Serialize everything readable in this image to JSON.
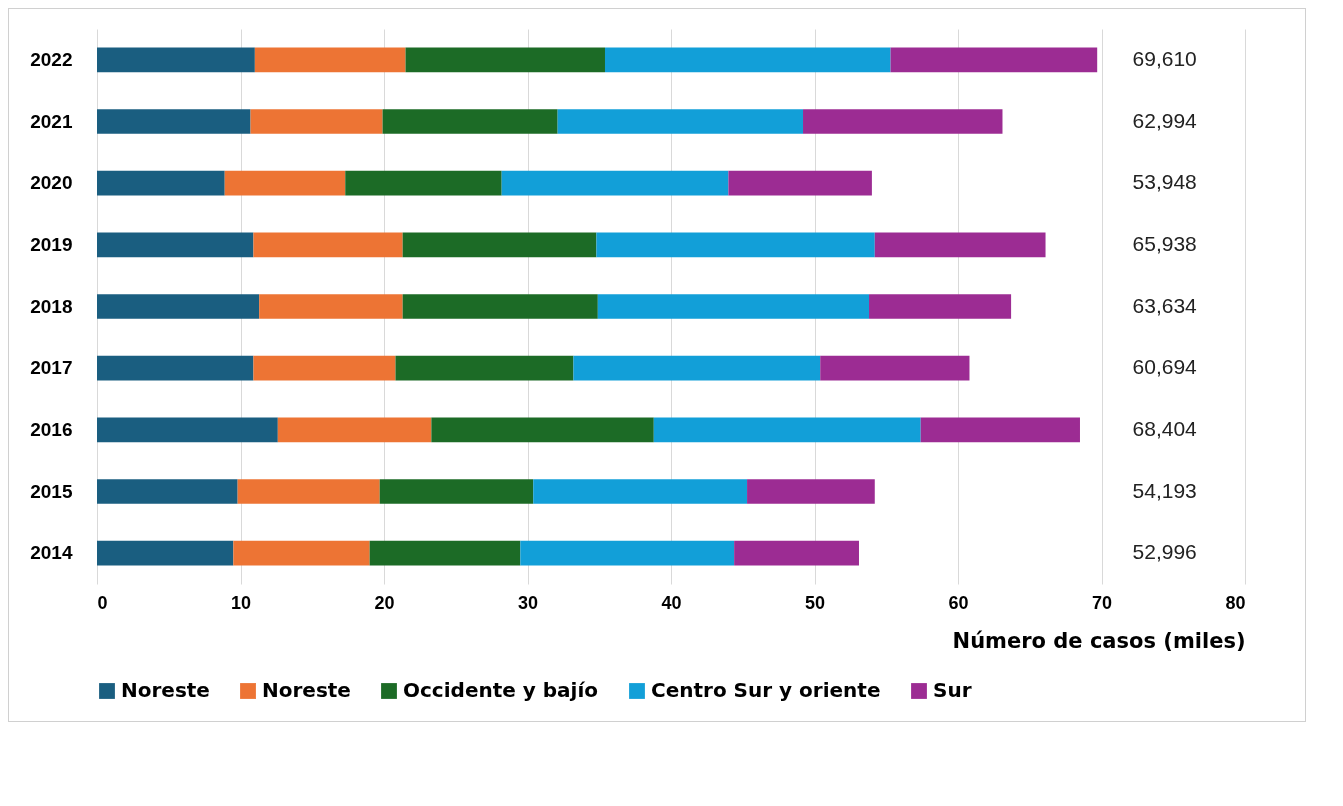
{
  "chart_data": {
    "type": "bar",
    "orientation": "horizontal",
    "stacked": true,
    "xlabel": "Número de casos (miles)",
    "categories": [
      "2022",
      "2021",
      "2020",
      "2019",
      "2018",
      "2017",
      "2016",
      "2015",
      "2014"
    ],
    "series": [
      {
        "name": "Noreste",
        "color": "#1a5e80",
        "values": [
          11.0,
          10.7,
          8.9,
          10.9,
          11.3,
          10.9,
          12.6,
          9.8,
          9.5
        ]
      },
      {
        "name": "Noreste",
        "color": "#ed7434",
        "values": [
          10.5,
          9.2,
          8.4,
          10.4,
          10.0,
          9.9,
          10.7,
          9.9,
          9.5
        ]
      },
      {
        "name": "Occidente y bajío",
        "color": "#1c6b26",
        "values": [
          13.9,
          12.2,
          10.9,
          13.5,
          13.6,
          12.4,
          15.5,
          10.7,
          10.5
        ]
      },
      {
        "name": "Centro Sur y oriente",
        "color": "#129fd8",
        "values": [
          19.9,
          17.1,
          15.8,
          19.4,
          18.9,
          17.2,
          18.6,
          14.9,
          14.9
        ]
      },
      {
        "name": "Sur",
        "color": "#9c2c93",
        "values": [
          14.4,
          13.9,
          10.0,
          11.9,
          9.9,
          10.4,
          11.1,
          8.9,
          8.7
        ]
      }
    ],
    "annotations": [
      "69,610",
      "62,994",
      "53,948",
      "65,938",
      "63,634",
      "60,694",
      "68,404",
      "54,193",
      "52,996"
    ],
    "xlim": [
      0,
      80
    ],
    "xticks": [
      0,
      10,
      20,
      30,
      40,
      50,
      60,
      70,
      80
    ],
    "grid": "x",
    "legend": "bottom"
  }
}
